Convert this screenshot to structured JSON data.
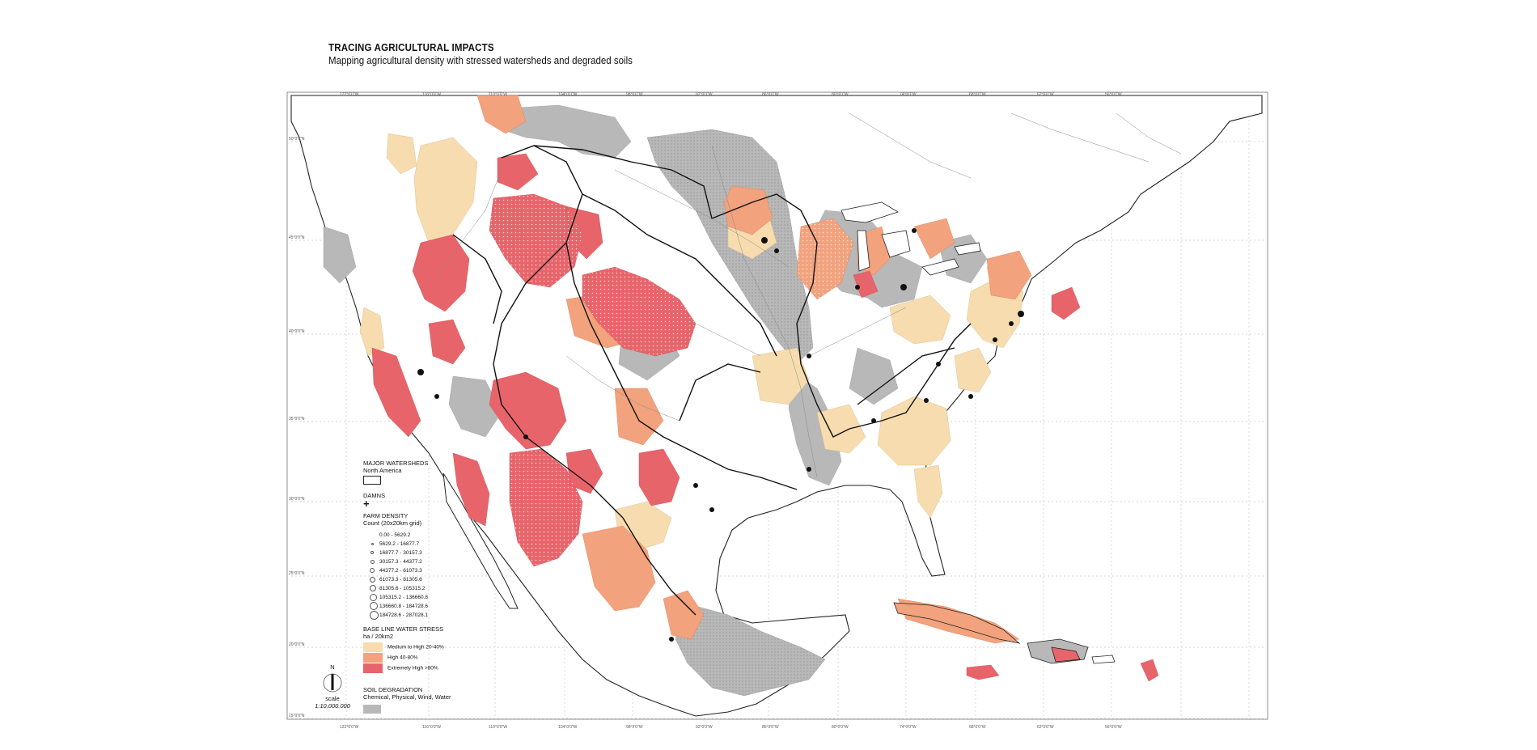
{
  "header": {
    "title": "TRACING AGRICULTURAL IMPACTS",
    "subtitle": "Mapping agricultural density with stressed watersheds and degraded soils"
  },
  "graticule": {
    "longitudes_top": [
      "122°0'0\"W",
      "116°0'0\"W",
      "110°0'0\"W",
      "104°0'0\"W",
      "98°0'0\"W",
      "92°0'0\"W",
      "86°0'0\"W",
      "80°0'0\"W",
      "74°0'0\"W",
      "68°0'0\"W",
      "62°0'0\"W",
      "56°0'0\"W"
    ],
    "longitudes_bottom": [
      "122°0'0\"W",
      "116°0'0\"W",
      "110°0'0\"W",
      "104°0'0\"W",
      "98°0'0\"W",
      "92°0'0\"W",
      "86°0'0\"W",
      "80°0'0\"W",
      "74°0'0\"W",
      "68°0'0\"W",
      "62°0'0\"W",
      "56°0'0\"W"
    ],
    "latitudes": [
      "50°0'0\"N",
      "45°0'0\"N",
      "40°0'0\"N",
      "35°0'0\"N",
      "30°0'0\"N",
      "25°0'0\"N",
      "20°0'0\"N",
      "15°0'0\"N"
    ]
  },
  "legend": {
    "watersheds": {
      "title": "MAJOR WATERSHEDS",
      "sub": "North America"
    },
    "damns": {
      "title": "DAMNS",
      "symbol": "+"
    },
    "farm_density": {
      "title": "FARM DENSITY",
      "sub": "Count (20x20km grid)",
      "classes": [
        "0.00 - 5629.2",
        "5629.2 - 16877.7",
        "16877.7 - 30157.3",
        "30157.3 - 44377.2",
        "44377.2 - 61073.3",
        "61073.3 - 81305.6",
        "81305.6 - 105315.2",
        "105315.2 - 136660.8",
        "136660.8 - 184728.6",
        "184728.6 - 287028.1"
      ]
    },
    "water_stress": {
      "title": "BASE LINE WATER STRESS",
      "sub": "ha / 20km2",
      "classes": [
        {
          "label": "Medium to High 20-40%",
          "color": "#f6dcae"
        },
        {
          "label": "High 40-80%",
          "color": "#f2a27c"
        },
        {
          "label": "Extremely High >80%",
          "color": "#e8646b"
        }
      ]
    },
    "soil": {
      "title": "SOIL DEGRADATION",
      "sub": "Chemical, Physical, Wind, Water",
      "color": "#b8b8b8"
    }
  },
  "scale": {
    "north": "N",
    "label": "scale",
    "ratio": "1:10.000.000"
  }
}
